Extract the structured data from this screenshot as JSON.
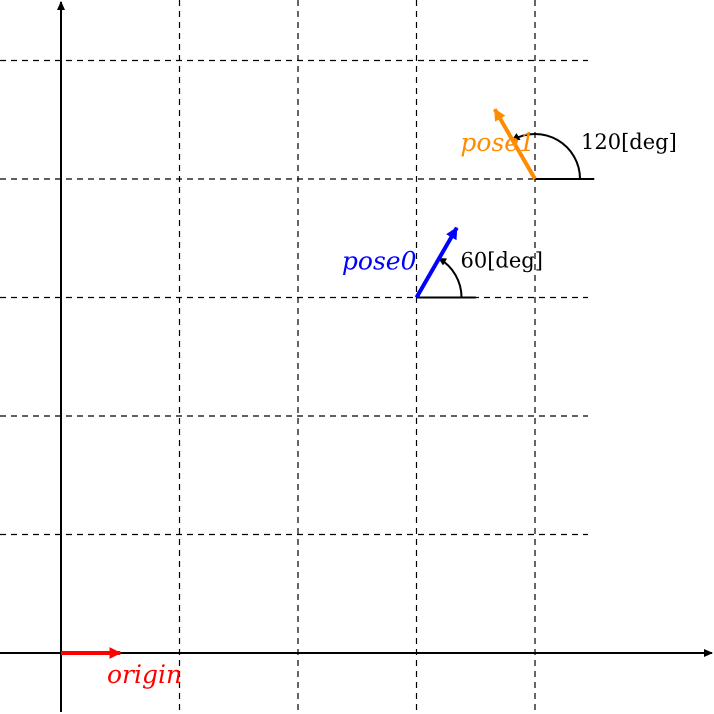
{
  "diagram": {
    "grid_step": 1,
    "x_range": [
      -0.5,
      5.5
    ],
    "y_range": [
      -0.5,
      5.5
    ],
    "origin": {
      "label": "origin",
      "x": 0,
      "y": 0,
      "theta_deg": 0,
      "length": 0.5,
      "color": "#ff0000"
    },
    "poses": [
      {
        "label": "pose0",
        "x": 3,
        "y": 3,
        "theta_deg": 60,
        "length": 0.68,
        "color": "#0000ff",
        "angle_label": "60[deg]",
        "ref_length": 0.5,
        "arc_radius": 0.38
      },
      {
        "label": "pose1",
        "x": 4,
        "y": 4,
        "theta_deg": 120,
        "length": 0.68,
        "color": "#ff8c00",
        "angle_label": "120[deg]",
        "ref_length": 0.5,
        "arc_radius": 0.38
      }
    ]
  }
}
